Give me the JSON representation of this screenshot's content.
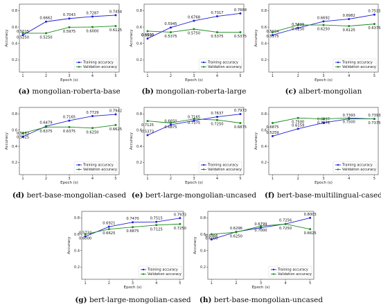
{
  "figure": {
    "colors": {
      "training": "#1f1fd6",
      "validation": "#1a8a1a",
      "axis": "#333333",
      "grid": "#dddddd"
    },
    "legend": {
      "training_label": "Training accuracy",
      "validation_label": "Validation accuracy",
      "placement": "lower-right"
    }
  },
  "chart_data": [
    {
      "type": "line",
      "panel_label": "(a)",
      "caption": "mongolian-roberta-base",
      "x": [
        1,
        2,
        3,
        4,
        5
      ],
      "xlabel": "Epoch (s)",
      "ylabel": "Accuracy",
      "yticks": [
        0.2,
        0.4,
        0.6,
        0.8
      ],
      "ylim": [
        0.05,
        0.88
      ],
      "grid": false,
      "series": [
        {
          "name": "Training accuracy",
          "values": [
            0.5015,
            0.6662,
            0.7043,
            0.7287,
            0.7454
          ],
          "labels": [
            "0.5015",
            "0.6662",
            "0.7043",
            "0.7287",
            "0.7454"
          ]
        },
        {
          "name": "Validation accuracy",
          "values": [
            0.525,
            0.525,
            0.5975,
            0.6,
            0.6125
          ],
          "labels": [
            "0.5250",
            "0.5250",
            "0.5975",
            "0.6000",
            "0.6125"
          ]
        }
      ]
    },
    {
      "type": "line",
      "panel_label": "(b)",
      "caption": "mongolian-roberta-large",
      "x": [
        1,
        2,
        3,
        4,
        5
      ],
      "xlabel": "Epoch (s)",
      "ylabel": "Accuracy",
      "yticks": [
        0.2,
        0.4,
        0.6,
        0.8
      ],
      "ylim": [
        0.05,
        0.88
      ],
      "grid": false,
      "series": [
        {
          "name": "Training accuracy",
          "values": [
            0.46,
            0.5945,
            0.6768,
            0.7317,
            0.7668
          ],
          "labels": [
            "0.4600",
            "0.5945",
            "0.6768",
            "0.7317",
            "0.7668"
          ]
        },
        {
          "name": "Validation accuracy",
          "values": [
            0.55,
            0.5375,
            0.575,
            0.5375,
            0.5375
          ],
          "labels": [
            "0.5500",
            "0.5375",
            "0.5750",
            "0.5375",
            "0.5375"
          ]
        }
      ]
    },
    {
      "type": "line",
      "panel_label": "(c)",
      "caption": "albert-mongolian",
      "x": [
        1,
        2,
        3,
        4,
        5
      ],
      "xlabel": "Epoch (s)",
      "ylabel": "Accuracy",
      "yticks": [
        0.2,
        0.4,
        0.6,
        0.8
      ],
      "ylim": [
        0.05,
        0.88
      ],
      "grid": false,
      "series": [
        {
          "name": "Training accuracy",
          "values": [
            0.5024,
            0.5899,
            0.6692,
            0.6982,
            0.7515
          ],
          "labels": [
            "0.5024",
            "0.5899",
            "0.6692",
            "0.6982",
            "0.7515"
          ]
        },
        {
          "name": "Validation accuracy",
          "values": [
            0.5375,
            0.625,
            0.625,
            0.6125,
            0.6375
          ],
          "labels": [
            "0.5375",
            "0.6250",
            "0.6250",
            "0.6125",
            "0.6375"
          ]
        }
      ]
    },
    {
      "type": "line",
      "panel_label": "(d)",
      "caption": "bert-base-mongolian-cased",
      "x": [
        1,
        2,
        3,
        4,
        5
      ],
      "xlabel": "Epoch (s)",
      "ylabel": "Accuracy",
      "yticks": [
        0.2,
        0.4,
        0.6,
        0.8
      ],
      "ylim": [
        0.05,
        0.88
      ],
      "grid": false,
      "series": [
        {
          "name": "Training accuracy",
          "values": [
            0.5183,
            0.6479,
            0.7165,
            0.7729,
            0.7942
          ],
          "labels": [
            "0.5183",
            "0.6479",
            "0.7165",
            "0.7729",
            "0.7942"
          ]
        },
        {
          "name": "Validation accuracy",
          "values": [
            0.5625,
            0.6375,
            0.6375,
            0.625,
            0.6625
          ],
          "labels": [
            "0.5625",
            "0.6375",
            "0.6375",
            "0.6250",
            "0.6625"
          ]
        }
      ]
    },
    {
      "type": "line",
      "panel_label": "(e)",
      "caption": "bert-large-mongolian-uncased",
      "x": [
        1,
        2,
        3,
        4,
        5
      ],
      "xlabel": "Epoch (s)",
      "ylabel": "Accuracy",
      "yticks": [
        0.2,
        0.4,
        0.6,
        0.8
      ],
      "ylim": [
        0.05,
        0.88
      ],
      "grid": false,
      "series": [
        {
          "name": "Training accuracy",
          "values": [
            0.5373,
            0.665,
            0.7165,
            0.7637,
            0.7973
          ],
          "labels": [
            "0.5373",
            "0.6650",
            "0.7165",
            "0.7637",
            "0.7973"
          ]
        },
        {
          "name": "Validation accuracy",
          "values": [
            0.7125,
            0.6875,
            0.7375,
            0.725,
            0.6875
          ],
          "labels": [
            "0.7125",
            "0.6875",
            "0.7375",
            "0.7250",
            "0.6875"
          ]
        }
      ]
    },
    {
      "type": "line",
      "panel_label": "(f)",
      "caption": "bert-base-multilingual-cased",
      "x": [
        1,
        2,
        3,
        4,
        5
      ],
      "xlabel": "Epoch (s)",
      "ylabel": "Accuracy",
      "yticks": [
        0.2,
        0.4,
        0.6,
        0.8
      ],
      "ylim": [
        0.05,
        0.88
      ],
      "grid": false,
      "series": [
        {
          "name": "Training accuracy",
          "values": [
            0.5259,
            0.6159,
            0.6897,
            0.7393,
            0.7393
          ],
          "labels": [
            "0.5259",
            "0.6159",
            "0.6897",
            "0.7393",
            "0.7393"
          ]
        },
        {
          "name": "Validation accuracy",
          "values": [
            0.6875,
            0.75,
            0.7375,
            0.75,
            0.7375
          ],
          "labels": [
            "0.6875",
            "0.7500",
            "0.7375",
            "0.7500",
            "0.7375"
          ]
        }
      ]
    },
    {
      "type": "line",
      "panel_label": "(g)",
      "caption": "bert-large-mongolian-cased",
      "x": [
        1,
        2,
        3,
        4,
        5
      ],
      "xlabel": "Epoch (s)",
      "ylabel": "Accuracy",
      "yticks": [
        0.2,
        0.4,
        0.6,
        0.8
      ],
      "ylim": [
        0.05,
        0.88
      ],
      "grid": false,
      "series": [
        {
          "name": "Training accuracy",
          "values": [
            0.5732,
            0.6921,
            0.747,
            0.7515,
            0.7973
          ],
          "labels": [
            "0.5732",
            "0.6921",
            "0.7470",
            "0.7515",
            "0.7973"
          ]
        },
        {
          "name": "Validation accuracy",
          "values": [
            0.6,
            0.6625,
            0.6875,
            0.7125,
            0.725
          ],
          "labels": [
            "0.6000",
            "0.6625",
            "0.6875",
            "0.7125",
            "0.7250"
          ]
        }
      ]
    },
    {
      "type": "line",
      "panel_label": "(h)",
      "caption": "bert-base-mongolian-uncased",
      "x": [
        1,
        2,
        3,
        4,
        5
      ],
      "xlabel": "Epoch (s)",
      "ylabel": "Accuracy",
      "yticks": [
        0.2,
        0.4,
        0.6,
        0.8
      ],
      "ylim": [
        0.05,
        0.88
      ],
      "grid": false,
      "series": [
        {
          "name": "Training accuracy",
          "values": [
            0.5366,
            0.6296,
            0.6799,
            0.7256,
            0.8003
          ],
          "labels": [
            "0.5366",
            "0.6296",
            "0.6799",
            "0.7256",
            "0.8003"
          ]
        },
        {
          "name": "Validation accuracy",
          "values": [
            0.6,
            0.625,
            0.7,
            0.725,
            0.6625
          ],
          "labels": [
            "0.6000",
            "0.6250",
            "0.7000",
            "0.7250",
            "0.6625"
          ]
        }
      ]
    }
  ]
}
